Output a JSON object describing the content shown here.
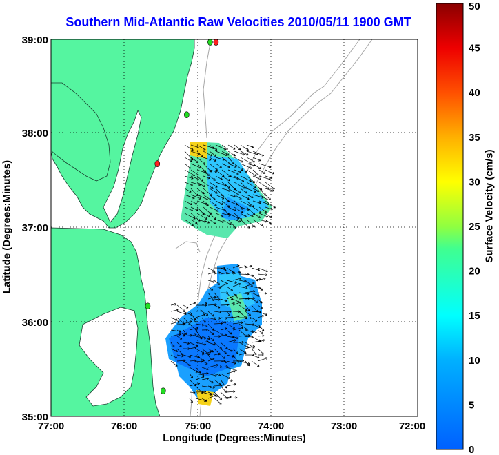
{
  "title": "Southern Mid-Atlantic Raw Velocities 2010/05/11 1900 GMT",
  "xlabel": "Longitude (Degrees:Minutes)",
  "ylabel": "Latitude (Degrees:Minutes)",
  "colorbar": {
    "label": "Surface Velocity (cm/s)",
    "ticks": [
      "0",
      "5",
      "10",
      "15",
      "20",
      "25",
      "30",
      "35",
      "40",
      "45",
      "50"
    ],
    "range": [
      0,
      50
    ],
    "colormap": "jet"
  },
  "axes": {
    "lon_ticks": [
      "77:00",
      "76:00",
      "75:00",
      "74:00",
      "73:00",
      "72:00"
    ],
    "lat_ticks": [
      "39:00",
      "38:00",
      "37:00",
      "36:00",
      "35:00"
    ],
    "lon_range": [
      -77,
      -72
    ],
    "lat_range": [
      35,
      39
    ],
    "grid": "dotted"
  },
  "colors": {
    "land": "#55f5a0",
    "water": "#ffffff",
    "bathymetry": "#a6a6a6",
    "title": "#0000ff",
    "station_active": "#22dd22",
    "station_inactive": "#ff2020"
  },
  "stations": [
    {
      "status": "active",
      "lon": -74.83,
      "lat": 38.97
    },
    {
      "status": "inactive",
      "lon": -74.75,
      "lat": 38.97
    },
    {
      "status": "active",
      "lon": -75.15,
      "lat": 38.2
    },
    {
      "status": "inactive",
      "lon": -75.55,
      "lat": 37.68
    },
    {
      "status": "active",
      "lon": -75.68,
      "lat": 36.17
    },
    {
      "status": "active",
      "lon": -75.47,
      "lat": 35.27
    }
  ]
}
